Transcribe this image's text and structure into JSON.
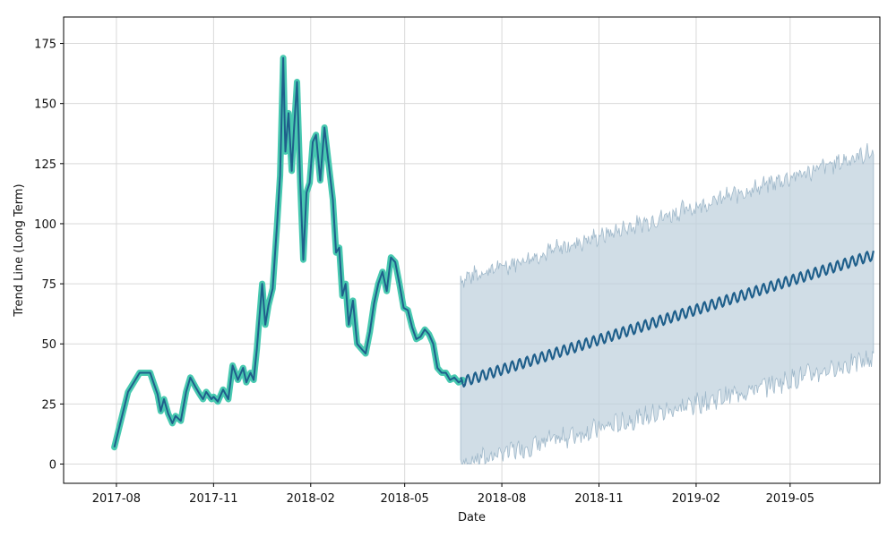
{
  "chart_data": {
    "type": "line",
    "title": "",
    "xlabel": "Date",
    "ylabel": "Trend Line (Long Term)",
    "x_axis": "date",
    "xlim": [
      "2017-06-12",
      "2019-07-25"
    ],
    "ylim": [
      -8,
      186
    ],
    "grid": true,
    "x_ticks": [
      {
        "date": "2017-08-01",
        "label": "2017-08"
      },
      {
        "date": "2017-11-01",
        "label": "2017-11"
      },
      {
        "date": "2018-02-01",
        "label": "2018-02"
      },
      {
        "date": "2018-05-01",
        "label": "2018-05"
      },
      {
        "date": "2018-08-01",
        "label": "2018-08"
      },
      {
        "date": "2018-11-01",
        "label": "2018-11"
      },
      {
        "date": "2019-02-01",
        "label": "2019-02"
      },
      {
        "date": "2019-05-01",
        "label": "2019-05"
      }
    ],
    "y_ticks": [
      0,
      25,
      50,
      75,
      100,
      125,
      150,
      175
    ],
    "colors": {
      "actual": "#48c9b0",
      "forecast": "#1f5f8b",
      "interval_fill": "#bccfdc",
      "interval_edge": "#9fb8ca"
    },
    "series": [
      {
        "role": "actual",
        "x": [
          "2017-07-30",
          "2017-08-12",
          "2017-08-23",
          "2017-08-28",
          "2017-09-02",
          "2017-09-05",
          "2017-09-09",
          "2017-09-12",
          "2017-09-15",
          "2017-09-19",
          "2017-09-23",
          "2017-09-26",
          "2017-10-01",
          "2017-10-06",
          "2017-10-10",
          "2017-10-15",
          "2017-10-19",
          "2017-10-22",
          "2017-10-25",
          "2017-10-30",
          "2017-11-01",
          "2017-11-05",
          "2017-11-10",
          "2017-11-15",
          "2017-11-19",
          "2017-11-24",
          "2017-11-29",
          "2017-12-02",
          "2017-12-06",
          "2017-12-09",
          "2017-12-12",
          "2017-12-17",
          "2017-12-20",
          "2017-12-23",
          "2017-12-27",
          "2017-12-31",
          "2018-01-03",
          "2018-01-06",
          "2018-01-08",
          "2018-01-11",
          "2018-01-14",
          "2018-01-16",
          "2018-01-19",
          "2018-01-22",
          "2018-01-25",
          "2018-01-28",
          "2018-01-31",
          "2018-02-03",
          "2018-02-06",
          "2018-02-10",
          "2018-02-14",
          "2018-02-18",
          "2018-02-22",
          "2018-02-25",
          "2018-02-28",
          "2018-03-03",
          "2018-03-06",
          "2018-03-09",
          "2018-03-13",
          "2018-03-17",
          "2018-03-21",
          "2018-03-25",
          "2018-03-29",
          "2018-04-02",
          "2018-04-06",
          "2018-04-10",
          "2018-04-14",
          "2018-04-18",
          "2018-04-22",
          "2018-04-26",
          "2018-04-30",
          "2018-05-04",
          "2018-05-08",
          "2018-05-12",
          "2018-05-16",
          "2018-05-20",
          "2018-05-24",
          "2018-05-28",
          "2018-06-01",
          "2018-06-05",
          "2018-06-09",
          "2018-06-13",
          "2018-06-17",
          "2018-06-21",
          "2018-06-25"
        ],
        "values": [
          7,
          30,
          38,
          38,
          38,
          34,
          29,
          22,
          27,
          21,
          17,
          20,
          18,
          30,
          36,
          32,
          29,
          27,
          30,
          27,
          28,
          26,
          31,
          27,
          41,
          35,
          40,
          34,
          38,
          35,
          48,
          75,
          58,
          66,
          73,
          99,
          120,
          169,
          130,
          146,
          122,
          138,
          159,
          118,
          85,
          113,
          117,
          134,
          137,
          118,
          140,
          125,
          110,
          88,
          90,
          70,
          75,
          58,
          68,
          50,
          48,
          46,
          55,
          67,
          75,
          80,
          72,
          86,
          84,
          75,
          65,
          64,
          57,
          52,
          53,
          56,
          54,
          50,
          40,
          38,
          38,
          35,
          36,
          34,
          35
        ]
      },
      {
        "role": "forecast",
        "x_start": "2018-06-23",
        "x_end": "2019-07-19",
        "y_start": 34,
        "y_end": 87,
        "weekly_amplitude": 2.2
      },
      {
        "role": "interval",
        "x_start": "2018-06-23",
        "x_end": "2019-07-19",
        "upper_start": 77,
        "upper_end": 130,
        "lower_start": 0,
        "lower_end": 44,
        "lower_floor": 0
      }
    ]
  }
}
